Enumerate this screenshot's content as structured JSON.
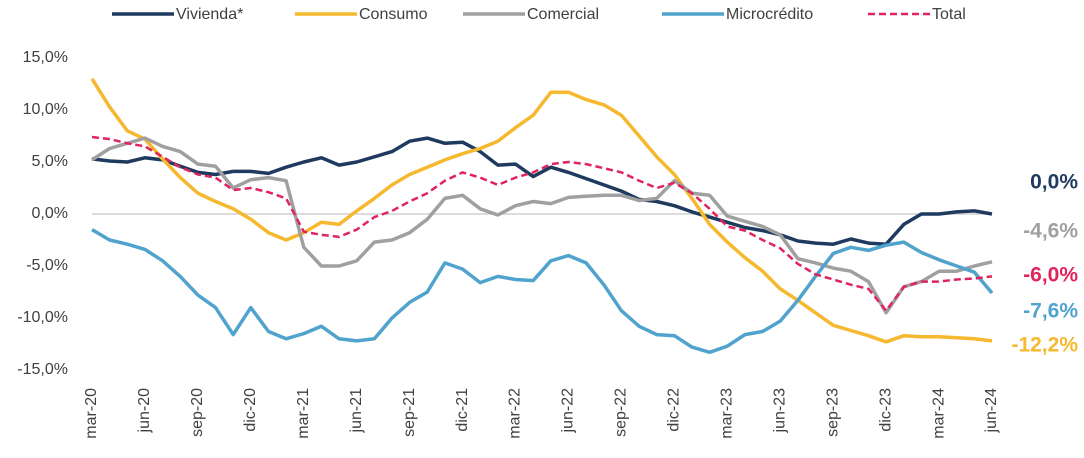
{
  "chart_data": {
    "type": "line",
    "categories": [
      "mar-20",
      null,
      null,
      "jun-20",
      null,
      null,
      "sep-20",
      null,
      null,
      "dic-20",
      null,
      null,
      "mar-21",
      null,
      null,
      "jun-21",
      null,
      null,
      "sep-21",
      null,
      null,
      "dic-21",
      null,
      null,
      "mar-22",
      null,
      null,
      "jun-22",
      null,
      null,
      "sep-22",
      null,
      null,
      "dic-22",
      null,
      null,
      "mar-23",
      null,
      null,
      "jun-23",
      null,
      null,
      "sep-23",
      null,
      null,
      "dic-23",
      null,
      null,
      "mar-24",
      null,
      null,
      "jun-24"
    ],
    "ylim": [
      -15,
      15
    ],
    "yticks": [
      {
        "value": -15,
        "label": "-15,0%"
      },
      {
        "value": -10,
        "label": "-10,0%"
      },
      {
        "value": -5,
        "label": "-5,0%"
      },
      {
        "value": 0,
        "label": "0,0%"
      },
      {
        "value": 5,
        "label": "5,0%"
      },
      {
        "value": 10,
        "label": "10,0%"
      },
      {
        "value": 15,
        "label": "15,0%"
      }
    ],
    "legend": "top",
    "series": [
      {
        "name": "Vivienda*",
        "color": "#1f3a5f",
        "values": [
          5.3,
          5.1,
          5.0,
          5.4,
          5.2,
          4.6,
          4.0,
          3.8,
          4.1,
          4.1,
          3.9,
          4.5,
          5.0,
          5.4,
          4.7,
          5.0,
          5.5,
          6.0,
          7.0,
          7.3,
          6.8,
          6.9,
          6.0,
          4.7,
          4.8,
          3.6,
          4.5,
          4.0,
          3.4,
          2.8,
          2.2,
          1.4,
          1.2,
          0.8,
          0.2,
          -0.3,
          -0.8,
          -1.3,
          -1.6,
          -2.0,
          -2.6,
          -2.8,
          -2.9,
          -2.4,
          -2.8,
          -2.9,
          -1.0,
          0.0,
          0.0,
          0.2,
          0.3,
          0.0
        ],
        "value_labels": [
          null,
          null,
          null,
          null,
          null,
          null,
          null,
          null,
          null,
          null,
          null,
          null,
          null,
          null,
          null,
          null,
          null,
          null,
          null,
          null,
          null,
          null,
          null,
          null,
          null,
          null,
          null,
          null,
          null,
          null,
          null,
          null,
          null,
          null,
          null,
          null,
          null,
          null,
          null,
          null,
          null,
          null,
          null,
          null,
          null,
          null,
          null,
          null,
          null,
          null,
          null,
          "0,0%"
        ]
      },
      {
        "name": "Consumo",
        "color": "#f5b82e",
        "values": [
          13.0,
          10.3,
          8.0,
          7.2,
          5.3,
          3.5,
          2.0,
          1.2,
          0.5,
          -0.5,
          -1.8,
          -2.5,
          -1.8,
          -0.8,
          -1.0,
          0.3,
          1.5,
          2.8,
          3.8,
          4.5,
          5.2,
          5.8,
          6.3,
          7.0,
          8.3,
          9.5,
          11.7,
          11.7,
          11.0,
          10.5,
          9.5,
          7.5,
          5.5,
          3.8,
          1.5,
          -1.0,
          -2.7,
          -4.2,
          -5.5,
          -7.2,
          -8.3,
          -9.5,
          -10.7,
          -11.2,
          -11.7,
          -12.3,
          -11.7,
          -11.8,
          -11.8,
          -11.9,
          -12.0,
          -12.2
        ],
        "value_labels": [
          null,
          null,
          null,
          null,
          null,
          null,
          null,
          null,
          null,
          null,
          null,
          null,
          null,
          null,
          null,
          null,
          null,
          null,
          null,
          null,
          null,
          null,
          null,
          null,
          null,
          null,
          null,
          null,
          null,
          null,
          null,
          null,
          null,
          null,
          null,
          null,
          null,
          null,
          null,
          null,
          null,
          null,
          null,
          null,
          null,
          null,
          null,
          null,
          null,
          null,
          null,
          "-12,2%"
        ]
      },
      {
        "name": "Comercial",
        "color": "#a0a0a0",
        "values": [
          5.2,
          6.3,
          6.8,
          7.3,
          6.5,
          6.0,
          4.8,
          4.6,
          2.5,
          3.3,
          3.5,
          3.2,
          -3.2,
          -5.0,
          -5.0,
          -4.5,
          -2.7,
          -2.5,
          -1.8,
          -0.5,
          1.5,
          1.8,
          0.5,
          -0.1,
          0.8,
          1.2,
          1.0,
          1.6,
          1.7,
          1.8,
          1.8,
          1.3,
          1.5,
          3.2,
          2.0,
          1.8,
          -0.2,
          -0.7,
          -1.2,
          -2.0,
          -4.3,
          -4.7,
          -5.2,
          -5.5,
          -6.5,
          -9.5,
          -7.0,
          -6.5,
          -5.5,
          -5.5,
          -5.0,
          -4.6
        ],
        "value_labels": [
          null,
          null,
          null,
          null,
          null,
          null,
          null,
          null,
          null,
          null,
          null,
          null,
          null,
          null,
          null,
          null,
          null,
          null,
          null,
          null,
          null,
          null,
          null,
          null,
          null,
          null,
          null,
          null,
          null,
          null,
          null,
          null,
          null,
          null,
          null,
          null,
          null,
          null,
          null,
          null,
          null,
          null,
          null,
          null,
          null,
          null,
          null,
          null,
          null,
          null,
          null,
          "-4,6%"
        ]
      },
      {
        "name": "Microcrédito",
        "color": "#4fa3cc",
        "values": [
          -1.5,
          -2.5,
          -2.9,
          -3.4,
          -4.5,
          -6.0,
          -7.8,
          -9.0,
          -11.6,
          -9.0,
          -11.3,
          -12.0,
          -11.5,
          -10.8,
          -12.0,
          -12.2,
          -12.0,
          -10.0,
          -8.5,
          -7.5,
          -4.7,
          -5.3,
          -6.6,
          -6.0,
          -6.3,
          -6.4,
          -4.5,
          -4.0,
          -4.7,
          -6.8,
          -9.3,
          -10.8,
          -11.6,
          -11.7,
          -12.8,
          -13.3,
          -12.7,
          -11.6,
          -11.3,
          -10.3,
          -8.3,
          -6.0,
          -3.8,
          -3.2,
          -3.5,
          -3.0,
          -2.7,
          -3.7,
          -4.4,
          -5.0,
          -5.6,
          -7.6
        ],
        "value_labels": [
          null,
          null,
          null,
          null,
          null,
          null,
          null,
          null,
          null,
          null,
          null,
          null,
          null,
          null,
          null,
          null,
          null,
          null,
          null,
          null,
          null,
          null,
          null,
          null,
          null,
          null,
          null,
          null,
          null,
          null,
          null,
          null,
          null,
          null,
          null,
          null,
          null,
          null,
          null,
          null,
          null,
          null,
          null,
          null,
          null,
          null,
          null,
          null,
          null,
          null,
          null,
          "-7,6%"
        ]
      },
      {
        "name": "Total",
        "color": "#e0245e",
        "dashed": true,
        "values": [
          7.4,
          7.2,
          6.8,
          6.5,
          5.5,
          4.5,
          3.8,
          3.5,
          2.3,
          2.5,
          2.1,
          1.5,
          -1.7,
          -2.0,
          -2.2,
          -1.5,
          -0.3,
          0.3,
          1.2,
          2.0,
          3.2,
          4.0,
          3.5,
          2.8,
          3.5,
          4.0,
          4.8,
          5.0,
          4.8,
          4.4,
          4.0,
          3.2,
          2.5,
          3.0,
          2.0,
          0.5,
          -1.2,
          -1.6,
          -2.5,
          -3.3,
          -4.8,
          -5.8,
          -6.3,
          -6.8,
          -7.2,
          -9.3,
          -7.0,
          -6.5,
          -6.5,
          -6.3,
          -6.2,
          -6.0
        ],
        "value_labels": [
          null,
          null,
          null,
          null,
          null,
          null,
          null,
          null,
          null,
          null,
          null,
          null,
          null,
          null,
          null,
          null,
          null,
          null,
          null,
          null,
          null,
          null,
          null,
          null,
          null,
          null,
          null,
          null,
          null,
          null,
          null,
          null,
          null,
          null,
          null,
          null,
          null,
          null,
          null,
          null,
          null,
          null,
          null,
          null,
          null,
          null,
          null,
          null,
          null,
          null,
          null,
          "-6,0%"
        ]
      }
    ]
  }
}
